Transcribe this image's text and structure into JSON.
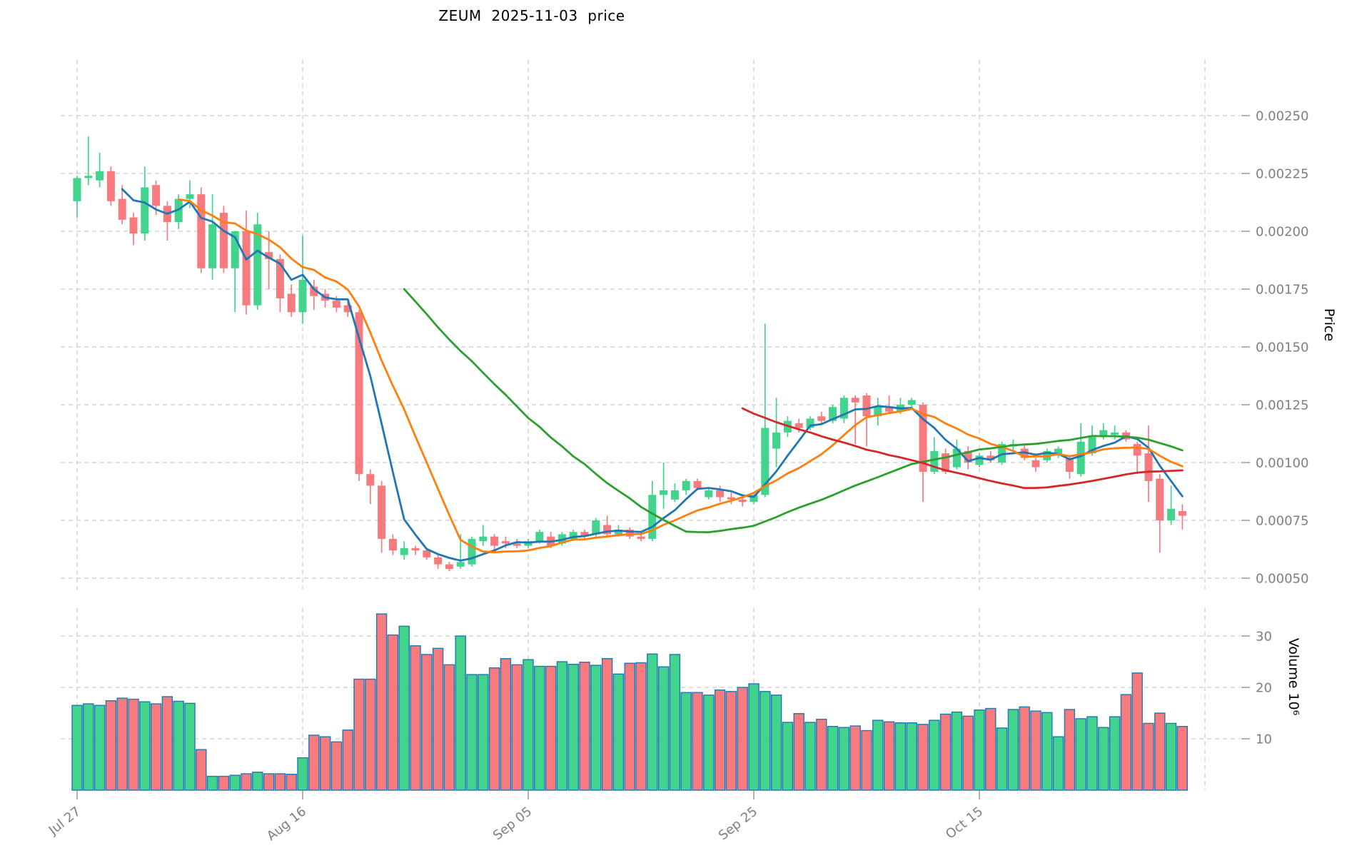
{
  "chart_data": {
    "type": "candlestick",
    "title": "ZEUM  2025-11-03  price",
    "symbol": "ZEUM",
    "as_of_date": "2025-11-03",
    "ylabel": "Price",
    "y2label": "Volume 10⁶",
    "legend_position": "none",
    "grid": true,
    "price_ylim": [
      0.00045,
      0.00275
    ],
    "volume_ylim": [
      0,
      35
    ],
    "price_ticks": [
      {
        "value": 0.0025,
        "label": "0.00250"
      },
      {
        "value": 0.00225,
        "label": "0.00225"
      },
      {
        "value": 0.002,
        "label": "0.00200"
      },
      {
        "value": 0.00175,
        "label": "0.00175"
      },
      {
        "value": 0.0015,
        "label": "0.00150"
      },
      {
        "value": 0.00125,
        "label": "0.00125"
      },
      {
        "value": 0.001,
        "label": "0.00100"
      },
      {
        "value": 0.00075,
        "label": "0.00075"
      },
      {
        "value": 0.0005,
        "label": "0.00050"
      }
    ],
    "volume_ticks": [
      {
        "value": 30,
        "label": "30"
      },
      {
        "value": 20,
        "label": "20"
      },
      {
        "value": 10,
        "label": "10"
      }
    ],
    "x_ticks": [
      {
        "index": 0,
        "label": "Jul 27"
      },
      {
        "index": 20,
        "label": "Aug 16"
      },
      {
        "index": 40,
        "label": "Sep 05"
      },
      {
        "index": 60,
        "label": "Sep 25"
      },
      {
        "index": 80,
        "label": "Oct 15"
      },
      {
        "index": 100,
        "label": ""
      }
    ],
    "moving_averages": {
      "windows": [
        5,
        10,
        30,
        60
      ],
      "colors": [
        "#1f77b4",
        "#ff7f0e",
        "#2ca02c",
        "#d62728"
      ]
    },
    "colors": {
      "up": "#42d38c",
      "down": "#f67a7e",
      "volume_edge": "#1f77b4",
      "grid": "#c9c9c9",
      "tick_label": "#7f7f7f",
      "title_text": "#000000"
    },
    "dates": [
      "2025-07-27",
      "2025-07-28",
      "2025-07-29",
      "2025-07-30",
      "2025-07-31",
      "2025-08-01",
      "2025-08-02",
      "2025-08-03",
      "2025-08-04",
      "2025-08-05",
      "2025-08-06",
      "2025-08-07",
      "2025-08-08",
      "2025-08-09",
      "2025-08-10",
      "2025-08-11",
      "2025-08-12",
      "2025-08-13",
      "2025-08-14",
      "2025-08-15",
      "2025-08-16",
      "2025-08-17",
      "2025-08-18",
      "2025-08-19",
      "2025-08-20",
      "2025-08-21",
      "2025-08-22",
      "2025-08-23",
      "2025-08-24",
      "2025-08-25",
      "2025-08-26",
      "2025-08-27",
      "2025-08-28",
      "2025-08-29",
      "2025-08-30",
      "2025-08-31",
      "2025-09-01",
      "2025-09-02",
      "2025-09-03",
      "2025-09-04",
      "2025-09-05",
      "2025-09-06",
      "2025-09-07",
      "2025-09-08",
      "2025-09-09",
      "2025-09-10",
      "2025-09-11",
      "2025-09-12",
      "2025-09-13",
      "2025-09-14",
      "2025-09-15",
      "2025-09-16",
      "2025-09-17",
      "2025-09-18",
      "2025-09-19",
      "2025-09-20",
      "2025-09-21",
      "2025-09-22",
      "2025-09-23",
      "2025-09-24",
      "2025-09-25",
      "2025-09-26",
      "2025-09-27",
      "2025-09-28",
      "2025-09-29",
      "2025-09-30",
      "2025-10-01",
      "2025-10-02",
      "2025-10-03",
      "2025-10-04",
      "2025-10-05",
      "2025-10-06",
      "2025-10-07",
      "2025-10-08",
      "2025-10-09",
      "2025-10-10",
      "2025-10-11",
      "2025-10-12",
      "2025-10-13",
      "2025-10-14",
      "2025-10-15",
      "2025-10-16",
      "2025-10-17",
      "2025-10-18",
      "2025-10-19",
      "2025-10-20",
      "2025-10-21",
      "2025-10-22",
      "2025-10-23",
      "2025-10-24",
      "2025-10-25",
      "2025-10-26",
      "2025-10-27",
      "2025-10-28",
      "2025-10-29",
      "2025-10-30",
      "2025-10-31",
      "2025-11-01",
      "2025-11-02"
    ],
    "ohlcv": [
      [
        0.00213,
        0.00224,
        0.00206,
        0.00223,
        16.5
      ],
      [
        0.00223,
        0.00241,
        0.0022,
        0.00224,
        16.8
      ],
      [
        0.00222,
        0.00234,
        0.00219,
        0.00226,
        16.5
      ],
      [
        0.00226,
        0.00228,
        0.00211,
        0.00213,
        17.4
      ],
      [
        0.00214,
        0.0022,
        0.00203,
        0.00205,
        17.9
      ],
      [
        0.00206,
        0.00208,
        0.00194,
        0.00199,
        17.7
      ],
      [
        0.00199,
        0.00228,
        0.00196,
        0.00219,
        17.2
      ],
      [
        0.0022,
        0.00222,
        0.00207,
        0.00211,
        16.8
      ],
      [
        0.00211,
        0.00213,
        0.00196,
        0.00204,
        18.2
      ],
      [
        0.00204,
        0.00216,
        0.00201,
        0.00214,
        17.3
      ],
      [
        0.00214,
        0.00222,
        0.0021,
        0.00216,
        16.9
      ],
      [
        0.00216,
        0.00219,
        0.00182,
        0.00184,
        7.9
      ],
      [
        0.00184,
        0.00216,
        0.00179,
        0.00203,
        2.7
      ],
      [
        0.00208,
        0.00211,
        0.00182,
        0.00184,
        2.7
      ],
      [
        0.00184,
        0.002,
        0.00165,
        0.002,
        2.9
      ],
      [
        0.002,
        0.00209,
        0.00164,
        0.00168,
        3.2
      ],
      [
        0.00168,
        0.00208,
        0.00166,
        0.00203,
        3.5
      ],
      [
        0.00191,
        0.002,
        0.00175,
        0.00188,
        3.2
      ],
      [
        0.00188,
        0.0019,
        0.00165,
        0.00171,
        3.2
      ],
      [
        0.00173,
        0.00177,
        0.00163,
        0.00165,
        3.1
      ],
      [
        0.00165,
        0.00198,
        0.0016,
        0.00179,
        6.3
      ],
      [
        0.00176,
        0.00179,
        0.00166,
        0.00172,
        10.7
      ],
      [
        0.00173,
        0.00175,
        0.00167,
        0.0017,
        10.4
      ],
      [
        0.0017,
        0.00172,
        0.00165,
        0.00167,
        9.4
      ],
      [
        0.00168,
        0.0017,
        0.00163,
        0.00165,
        11.7
      ],
      [
        0.00165,
        0.00166,
        0.00092,
        0.00095,
        21.6
      ],
      [
        0.00095,
        0.00097,
        0.00082,
        0.0009,
        21.6
      ],
      [
        0.0009,
        0.00092,
        0.00061,
        0.00067,
        34.3
      ],
      [
        0.00067,
        0.00069,
        0.0006,
        0.00062,
        30.2
      ],
      [
        0.0006,
        0.00066,
        0.00058,
        0.00063,
        31.9
      ],
      [
        0.00063,
        0.00064,
        0.0006,
        0.00062,
        28.1
      ],
      [
        0.00062,
        0.00063,
        0.00058,
        0.00059,
        26.4
      ],
      [
        0.00059,
        0.0006,
        0.00054,
        0.00056,
        27.6
      ],
      [
        0.00056,
        0.00057,
        0.00053,
        0.00054,
        24.4
      ],
      [
        0.00055,
        0.00069,
        0.00054,
        0.00057,
        30.0
      ],
      [
        0.00056,
        0.00068,
        0.00055,
        0.00067,
        22.5
      ],
      [
        0.00066,
        0.00073,
        0.00064,
        0.00068,
        22.5
      ],
      [
        0.00068,
        0.00069,
        0.00062,
        0.00064,
        23.8
      ],
      [
        0.00066,
        0.00068,
        0.00063,
        0.00065,
        25.6
      ],
      [
        0.00065,
        0.00067,
        0.00063,
        0.00064,
        24.4
      ],
      [
        0.00064,
        0.00067,
        0.00063,
        0.00066,
        25.4
      ],
      [
        0.00066,
        0.00071,
        0.00065,
        0.0007,
        24.1
      ],
      [
        0.00068,
        0.0007,
        0.00063,
        0.00064,
        24.1
      ],
      [
        0.00065,
        0.0007,
        0.00064,
        0.00069,
        25.0
      ],
      [
        0.00067,
        0.00071,
        0.00066,
        0.0007,
        24.5
      ],
      [
        0.0007,
        0.00071,
        0.00067,
        0.00068,
        24.9
      ],
      [
        0.00069,
        0.00076,
        0.00068,
        0.00075,
        24.3
      ],
      [
        0.00073,
        0.00077,
        0.00068,
        0.00069,
        25.6
      ],
      [
        0.00069,
        0.00073,
        0.00068,
        0.00071,
        22.6
      ],
      [
        0.00071,
        0.00072,
        0.00067,
        0.00068,
        24.7
      ],
      [
        0.00068,
        0.0007,
        0.00066,
        0.00067,
        24.8
      ],
      [
        0.00067,
        0.00092,
        0.00066,
        0.00086,
        26.5
      ],
      [
        0.00086,
        0.001,
        0.0008,
        0.00088,
        24.0
      ],
      [
        0.00084,
        0.00091,
        0.00083,
        0.00088,
        26.4
      ],
      [
        0.00088,
        0.00093,
        0.00086,
        0.00092,
        19.0
      ],
      [
        0.00092,
        0.00093,
        0.00088,
        0.00089,
        19.0
      ],
      [
        0.00085,
        0.00089,
        0.00084,
        0.00088,
        18.5
      ],
      [
        0.00088,
        0.0009,
        0.00083,
        0.00085,
        19.5
      ],
      [
        0.00085,
        0.00087,
        0.00082,
        0.00084,
        19.2
      ],
      [
        0.00084,
        0.00086,
        0.00081,
        0.00083,
        20.0
      ],
      [
        0.00083,
        0.00087,
        0.00082,
        0.00086,
        20.7
      ],
      [
        0.00086,
        0.0016,
        0.00085,
        0.00115,
        19.2
      ],
      [
        0.00106,
        0.00128,
        0.00098,
        0.00113,
        18.5
      ],
      [
        0.00113,
        0.0012,
        0.00111,
        0.00118,
        13.2
      ],
      [
        0.00117,
        0.00119,
        0.00113,
        0.00115,
        14.9
      ],
      [
        0.00115,
        0.0012,
        0.00114,
        0.00119,
        13.2
      ],
      [
        0.0012,
        0.00122,
        0.00117,
        0.00118,
        13.8
      ],
      [
        0.00118,
        0.00125,
        0.00117,
        0.00124,
        12.4
      ],
      [
        0.00119,
        0.00129,
        0.00117,
        0.00128,
        12.2
      ],
      [
        0.00128,
        0.00129,
        0.00108,
        0.00126,
        12.5
      ],
      [
        0.00129,
        0.0013,
        0.00107,
        0.0012,
        11.6
      ],
      [
        0.0012,
        0.00128,
        0.00116,
        0.00124,
        13.6
      ],
      [
        0.00124,
        0.00129,
        0.00121,
        0.00122,
        13.3
      ],
      [
        0.00122,
        0.00128,
        0.00121,
        0.00125,
        13.1
      ],
      [
        0.00125,
        0.00128,
        0.00123,
        0.00127,
        13.1
      ],
      [
        0.00125,
        0.00126,
        0.00083,
        0.00096,
        12.8
      ],
      [
        0.00096,
        0.00111,
        0.00095,
        0.00105,
        13.6
      ],
      [
        0.00104,
        0.00106,
        0.00095,
        0.00096,
        14.8
      ],
      [
        0.00098,
        0.0011,
        0.00097,
        0.00106,
        15.2
      ],
      [
        0.00105,
        0.00107,
        0.00097,
        0.001,
        14.4
      ],
      [
        0.00099,
        0.00104,
        0.00098,
        0.00103,
        15.6
      ],
      [
        0.00103,
        0.00105,
        0.001,
        0.00101,
        15.9
      ],
      [
        0.001,
        0.00109,
        0.00099,
        0.00108,
        12.1
      ],
      [
        0.00107,
        0.0011,
        0.00105,
        0.00108,
        15.7
      ],
      [
        0.00106,
        0.00108,
        0.00101,
        0.00102,
        16.2
      ],
      [
        0.00101,
        0.00102,
        0.00096,
        0.00098,
        15.4
      ],
      [
        0.00101,
        0.00106,
        0.001,
        0.00105,
        15.1
      ],
      [
        0.00103,
        0.00107,
        0.00102,
        0.00106,
        10.4
      ],
      [
        0.00102,
        0.00103,
        0.00093,
        0.00096,
        15.7
      ],
      [
        0.00095,
        0.00117,
        0.00094,
        0.00109,
        13.9
      ],
      [
        0.00104,
        0.00116,
        0.00103,
        0.00111,
        14.3
      ],
      [
        0.00111,
        0.00117,
        0.0011,
        0.00114,
        12.2
      ],
      [
        0.00112,
        0.00116,
        0.0011,
        0.00113,
        14.3
      ],
      [
        0.00113,
        0.00114,
        0.00109,
        0.0011,
        18.6
      ],
      [
        0.00108,
        0.00109,
        0.00095,
        0.00103,
        22.8
      ],
      [
        0.00104,
        0.00116,
        0.00083,
        0.00092,
        13.0
      ],
      [
        0.00093,
        0.00095,
        0.00061,
        0.00075,
        15.0
      ],
      [
        0.00075,
        0.0009,
        0.00073,
        0.0008,
        13.0
      ],
      [
        0.00079,
        0.00082,
        0.00071,
        0.00077,
        12.4
      ]
    ]
  }
}
